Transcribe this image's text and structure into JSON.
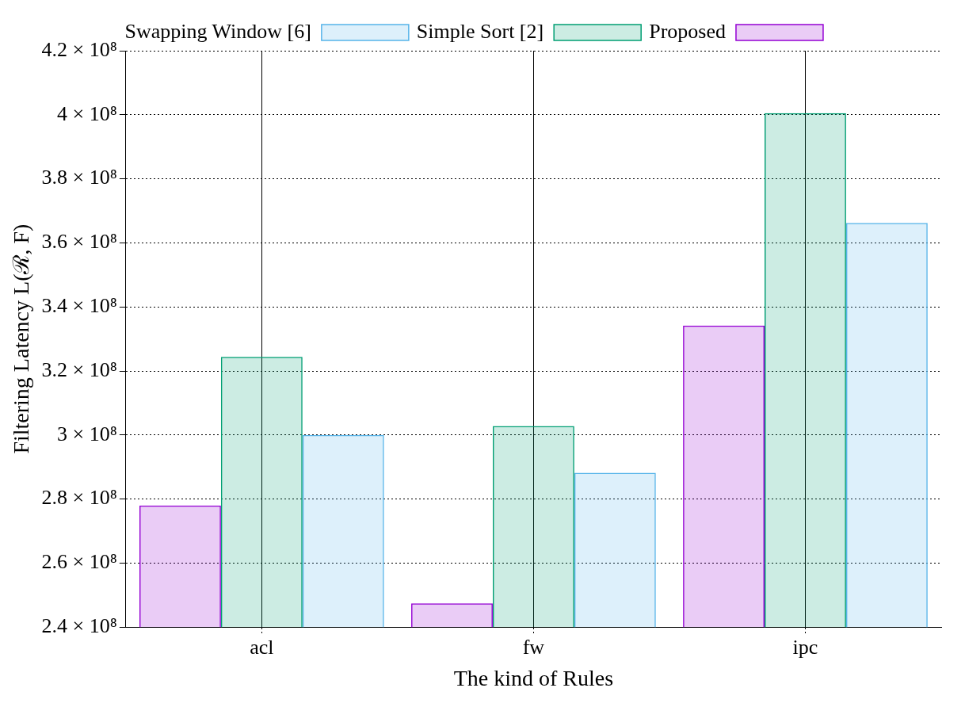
{
  "chart_data": {
    "type": "bar",
    "xlabel": "The kind of Rules",
    "ylabel": "Filtering Latency L(ℛ, F)",
    "categories": [
      "acl",
      "fw",
      "ipc"
    ],
    "series": [
      {
        "name": "Proposed",
        "color": "#9400d3",
        "values": [
          278000000,
          247400000,
          334200000
        ]
      },
      {
        "name": "Simple Sort [2]",
        "color": "#009e73",
        "values": [
          324400000,
          302800000,
          400500000
        ]
      },
      {
        "name": "Swapping Window [6]",
        "color": "#56b4e9",
        "values": [
          300000000,
          288200000,
          366200000
        ]
      }
    ],
    "ylim": [
      240000000,
      420000000
    ],
    "yticks": [
      {
        "value": 240000000,
        "label": "2.4 × 10⁸"
      },
      {
        "value": 260000000,
        "label": "2.6 × 10⁸"
      },
      {
        "value": 280000000,
        "label": "2.8 × 10⁸"
      },
      {
        "value": 300000000,
        "label": "3 × 10⁸"
      },
      {
        "value": 320000000,
        "label": "3.2 × 10⁸"
      },
      {
        "value": 340000000,
        "label": "3.4 × 10⁸"
      },
      {
        "value": 360000000,
        "label": "3.6 × 10⁸"
      },
      {
        "value": 380000000,
        "label": "3.8 × 10⁸"
      },
      {
        "value": 400000000,
        "label": "4 × 10⁸"
      },
      {
        "value": 420000000,
        "label": "4.2 × 10⁸"
      }
    ],
    "grid": true,
    "legend": "top"
  }
}
